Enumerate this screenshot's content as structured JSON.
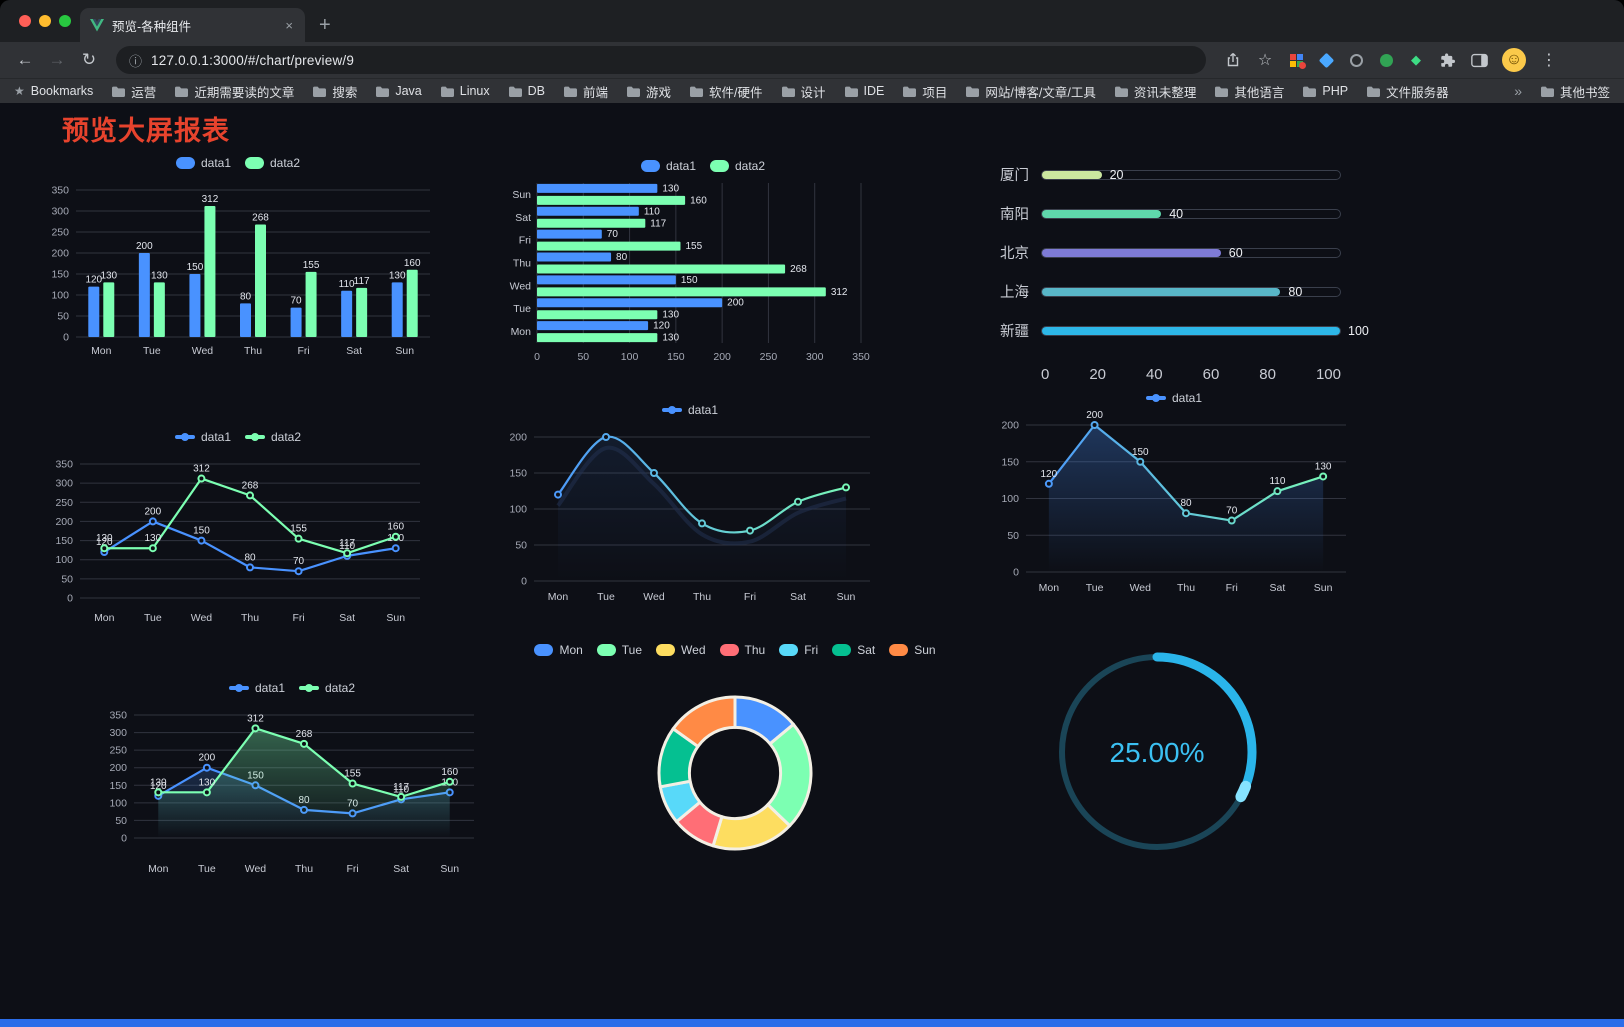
{
  "browser": {
    "tab": {
      "title": "预览-各种组件"
    },
    "url": "127.0.0.1:3000/#/chart/preview/9",
    "glyphs": {
      "back": "←",
      "forward": "→",
      "reload": "↻",
      "info": "ⓘ",
      "close_tab": "×",
      "new_tab": "+",
      "star": "☆",
      "bookmarks_star": "★",
      "menu": "⋮",
      "smiley": "☺"
    },
    "bookmarks_label": "Bookmarks",
    "bookmarks": [
      "运营",
      "近期需要读的文章",
      "搜索",
      "Java",
      "Linux",
      "DB",
      "前端",
      "游戏",
      "软件/硬件",
      "设计",
      "IDE",
      "项目",
      "网站/博客/文章/工具",
      "资讯未整理",
      "其他语言",
      "PHP",
      "文件服务器"
    ],
    "bookmarks_overflow": "»",
    "other_bookmarks": "其他书签"
  },
  "page": {
    "title": "预览大屏报表",
    "title_color": "#e7432d",
    "background": "#0d0f16",
    "footer_color": "#2b6de9"
  },
  "chart_data": [
    {
      "id": "grouped-bar",
      "type": "bar",
      "categories": [
        "Mon",
        "Tue",
        "Wed",
        "Thu",
        "Fri",
        "Sat",
        "Sun"
      ],
      "series": [
        {
          "name": "data1",
          "color": "#4992ff",
          "values": [
            120,
            200,
            150,
            80,
            70,
            110,
            130
          ]
        },
        {
          "name": "data2",
          "color": "#7cffb2",
          "values": [
            130,
            130,
            312,
            268,
            155,
            117,
            160
          ]
        }
      ],
      "ylim": [
        0,
        350
      ],
      "yticks": [
        0,
        50,
        100,
        150,
        200,
        250,
        300,
        350
      ],
      "legend_shape": "rect",
      "show_labels": true,
      "grid": true
    },
    {
      "id": "grouped-horizontal-bar",
      "type": "bar-horizontal",
      "categories": [
        "Mon",
        "Tue",
        "Wed",
        "Thu",
        "Fri",
        "Sat",
        "Sun"
      ],
      "series": [
        {
          "name": "data1",
          "color": "#4992ff",
          "values": [
            120,
            200,
            150,
            80,
            70,
            110,
            130
          ]
        },
        {
          "name": "data2",
          "color": "#7cffb2",
          "values": [
            130,
            130,
            312,
            268,
            155,
            117,
            160
          ]
        }
      ],
      "xlim": [
        0,
        350
      ],
      "xticks": [
        0,
        50,
        100,
        150,
        200,
        250,
        300,
        350
      ],
      "legend_shape": "rect",
      "show_labels": true,
      "grid": true
    },
    {
      "id": "capsule-progress-bars",
      "type": "capsule",
      "categories": [
        "厦门",
        "南阳",
        "北京",
        "上海",
        "新疆"
      ],
      "values": [
        20,
        40,
        60,
        80,
        100
      ],
      "colors": [
        "#cbe7a0",
        "#5fd8ac",
        "#7e7bd6",
        "#58b6c8",
        "#2db7e8"
      ],
      "xlim": [
        0,
        100
      ],
      "xticks": [
        0,
        20,
        40,
        60,
        80,
        100
      ]
    },
    {
      "id": "two-series-line",
      "type": "line",
      "categories": [
        "Mon",
        "Tue",
        "Wed",
        "Thu",
        "Fri",
        "Sat",
        "Sun"
      ],
      "series": [
        {
          "name": "data1",
          "color": "#4992ff",
          "values": [
            120,
            200,
            150,
            80,
            70,
            110,
            130
          ]
        },
        {
          "name": "data2",
          "color": "#7cffb2",
          "values": [
            130,
            130,
            312,
            268,
            155,
            117,
            160
          ]
        }
      ],
      "ylim": [
        0,
        350
      ],
      "yticks": [
        0,
        50,
        100,
        150,
        200,
        250,
        300,
        350
      ],
      "legend_shape": "line",
      "show_labels": true
    },
    {
      "id": "smooth-gradient-line",
      "type": "line",
      "categories": [
        "Mon",
        "Tue",
        "Wed",
        "Thu",
        "Fri",
        "Sat",
        "Sun"
      ],
      "series": [
        {
          "name": "data1",
          "color": "#4992ff",
          "color_end": "#7cffb2",
          "values": [
            120,
            200,
            150,
            80,
            70,
            110,
            130
          ],
          "smooth": true,
          "shadow": true,
          "area": true,
          "area_opacity": 0.1
        }
      ],
      "ylim": [
        0,
        200
      ],
      "yticks": [
        0,
        50,
        100,
        150,
        200
      ],
      "legend_shape": "line",
      "show_labels": false
    },
    {
      "id": "area-line",
      "type": "line",
      "categories": [
        "Mon",
        "Tue",
        "Wed",
        "Thu",
        "Fri",
        "Sat",
        "Sun"
      ],
      "series": [
        {
          "name": "data1",
          "color": "#4992ff",
          "color_end": "#7cffb2",
          "values": [
            120,
            200,
            150,
            80,
            70,
            110,
            130
          ],
          "area": true,
          "area_opacity": 0.3
        }
      ],
      "ylim": [
        0,
        200
      ],
      "yticks": [
        0,
        50,
        100,
        150,
        200
      ],
      "legend_shape": "line",
      "show_labels": true
    },
    {
      "id": "two-series-area-line",
      "type": "line",
      "categories": [
        "Mon",
        "Tue",
        "Wed",
        "Thu",
        "Fri",
        "Sat",
        "Sun"
      ],
      "series": [
        {
          "name": "data1",
          "color": "#4992ff",
          "values": [
            120,
            200,
            150,
            80,
            70,
            110,
            130
          ],
          "area": true,
          "area_opacity": 0.22
        },
        {
          "name": "data2",
          "color": "#7cffb2",
          "values": [
            130,
            130,
            312,
            268,
            155,
            117,
            160
          ],
          "area": true,
          "area_opacity": 0.35
        }
      ],
      "ylim": [
        0,
        350
      ],
      "yticks": [
        0,
        50,
        100,
        150,
        200,
        250,
        300,
        350
      ],
      "legend_shape": "line",
      "show_labels": true
    },
    {
      "id": "weekday-donut",
      "type": "pie",
      "categories": [
        "Mon",
        "Tue",
        "Wed",
        "Thu",
        "Fri",
        "Sat",
        "Sun"
      ],
      "values": [
        120,
        200,
        150,
        80,
        70,
        110,
        130
      ],
      "colors": [
        "#4992ff",
        "#7cffb2",
        "#fddd60",
        "#ff6e76",
        "#58d9f9",
        "#05c091",
        "#ff8a45"
      ],
      "inner_radius_ratio": 0.6,
      "border_color": "#f3efe4",
      "legend_shape": "rect"
    },
    {
      "id": "progress-ring",
      "type": "ring",
      "percent": 25,
      "label": "25.00%",
      "arc_degrees": 118,
      "color": "#2ab5ea",
      "track_color": "#1a4557",
      "text_color": "#3bc0f2"
    }
  ]
}
